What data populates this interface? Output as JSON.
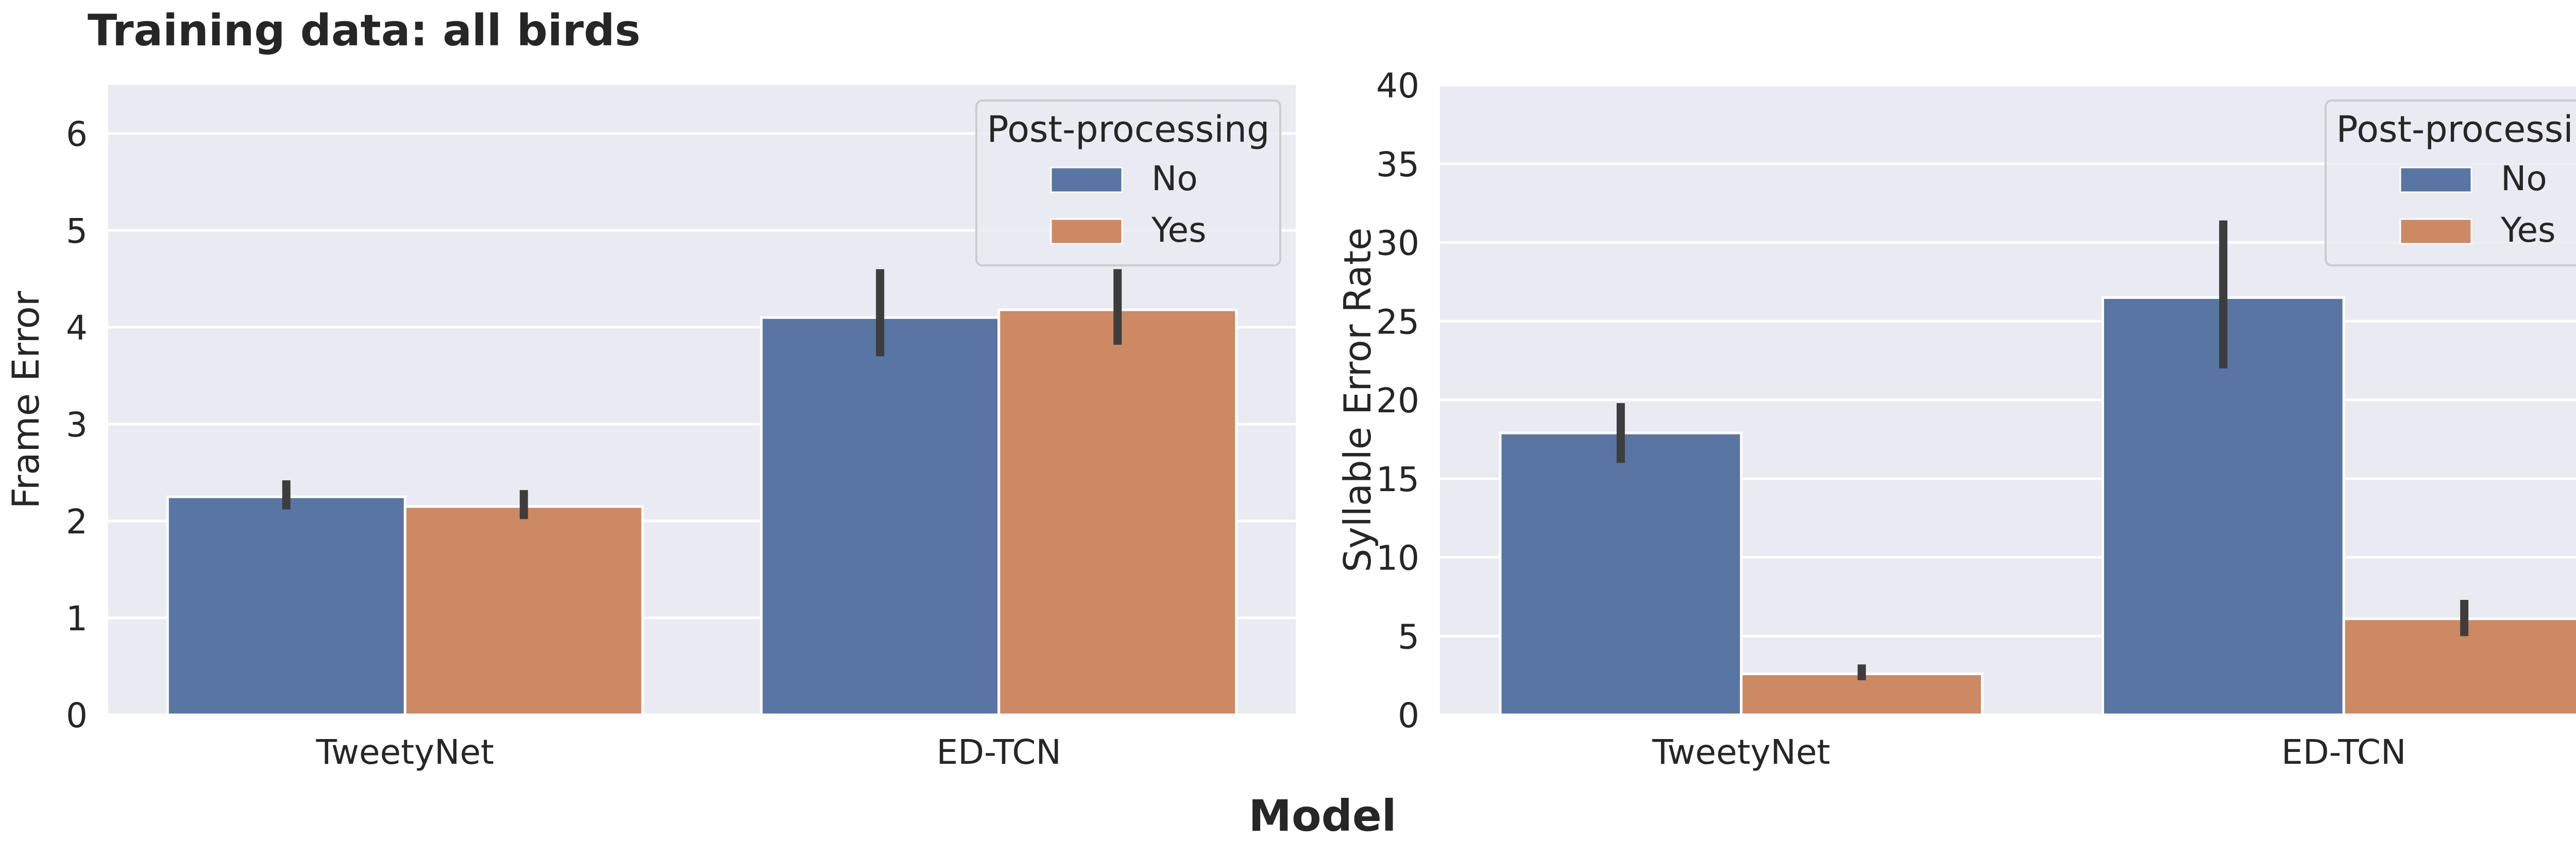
{
  "figure": {
    "title": "Training data: all birds",
    "xlabel": "Model"
  },
  "colors": {
    "no": "#5875a4",
    "yes": "#cc8963",
    "panel_bg": "#eaeaf2",
    "grid": "#ffffff",
    "errorbar": "#3d3d3d"
  },
  "chart_data": [
    {
      "type": "bar",
      "categories": [
        "TweetyNet",
        "ED-TCN"
      ],
      "ylabel": "Frame Error",
      "xlabel": "",
      "ylim": [
        0,
        6.5
      ],
      "yticks": [
        0,
        1,
        2,
        3,
        4,
        5,
        6
      ],
      "grid": true,
      "legend": {
        "title": "Post-processing",
        "placement": "top-right"
      },
      "series": [
        {
          "name": "No",
          "values": [
            2.25,
            4.1
          ],
          "err_low": [
            2.12,
            3.7
          ],
          "err_high": [
            2.42,
            4.6
          ]
        },
        {
          "name": "Yes",
          "values": [
            2.15,
            4.18
          ],
          "err_low": [
            2.02,
            3.82
          ],
          "err_high": [
            2.32,
            4.6
          ]
        }
      ]
    },
    {
      "type": "bar",
      "categories": [
        "TweetyNet",
        "ED-TCN"
      ],
      "ylabel": "Syllable Error Rate",
      "xlabel": "",
      "ylim": [
        0,
        40
      ],
      "yticks": [
        0,
        5,
        10,
        15,
        20,
        25,
        30,
        35,
        40
      ],
      "grid": true,
      "legend": {
        "title": "Post-processing",
        "placement": "top-right"
      },
      "series": [
        {
          "name": "No",
          "values": [
            17.9,
            26.5
          ],
          "err_low": [
            16.0,
            22.0
          ],
          "err_high": [
            19.8,
            31.4
          ]
        },
        {
          "name": "Yes",
          "values": [
            2.6,
            6.1
          ],
          "err_low": [
            2.2,
            5.0
          ],
          "err_high": [
            3.2,
            7.3
          ]
        }
      ]
    }
  ]
}
